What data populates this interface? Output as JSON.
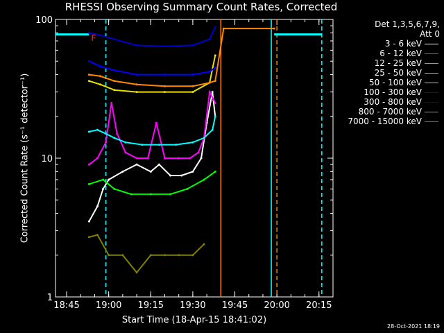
{
  "chart_data": {
    "type": "line",
    "title": "RHESSI Observing Summary Count Rates, Corrected",
    "xlabel": "Start Time (18-Apr-15 18:41:02)",
    "ylabel": "Corrected Count Rate (s⁻¹ detector⁻¹)",
    "x_ticks": [
      "18:45",
      "19:00",
      "19:15",
      "19:30",
      "19:45",
      "20:00",
      "20:15"
    ],
    "y_ticks": [
      "1",
      "10",
      "100"
    ],
    "y_scale": "log",
    "ylim": [
      1,
      100
    ],
    "xlim": [
      "18:41:02",
      "20:20"
    ],
    "grid": false,
    "legend_position": "top-right",
    "legend_header": [
      "Det 1,3,5,6,7,9,",
      "Att 0"
    ],
    "footer": "28-Oct-2021 18:19",
    "flag_label": "F",
    "colors": {
      "3 - 6 keV": "#000000",
      "6 - 12 keV": "#ff00ff",
      "12 - 25 keV": "#00ff00",
      "25 - 50 keV": "#00ffff",
      "50 - 100 keV": "#e8e000",
      "100 - 300 keV": "#0000ff",
      "300 - 800 keV": "#0000cc",
      "800 - 7000 keV": "#ff8800",
      "7000 - 15000 keV": "#808000"
    },
    "series": [
      {
        "name": "3 - 6 keV",
        "x": [
          "18:53",
          "18:56",
          "18:58",
          "19:00",
          "19:05",
          "19:10",
          "19:15",
          "19:18",
          "19:22",
          "19:26",
          "19:30",
          "19:33",
          "19:35",
          "19:37",
          "19:38"
        ],
        "values": [
          3.5,
          4.5,
          6,
          7,
          8,
          9,
          8,
          9,
          7.5,
          7.5,
          8,
          10,
          18,
          30,
          20
        ]
      },
      {
        "name": "6 - 12 keV",
        "x": [
          "18:53",
          "18:56",
          "18:59",
          "19:01",
          "19:03",
          "19:06",
          "19:10",
          "19:14",
          "19:17",
          "19:20",
          "19:25",
          "19:29",
          "19:32",
          "19:34",
          "19:36",
          "19:38"
        ],
        "values": [
          9,
          10,
          13,
          25,
          15,
          11,
          10,
          10,
          18,
          10,
          10,
          10,
          11,
          14,
          30,
          25
        ]
      },
      {
        "name": "12 - 25 keV",
        "x": [
          "18:53",
          "18:58",
          "19:02",
          "19:08",
          "19:15",
          "19:22",
          "19:28",
          "19:34",
          "19:38"
        ],
        "values": [
          6.5,
          7,
          6,
          5.5,
          5.5,
          5.5,
          6,
          7,
          8
        ]
      },
      {
        "name": "25 - 50 keV",
        "x": [
          "18:53",
          "18:56",
          "18:59",
          "19:02",
          "19:06",
          "19:12",
          "19:18",
          "19:24",
          "19:30",
          "19:34",
          "19:37",
          "19:38"
        ],
        "values": [
          15.5,
          16,
          15,
          14,
          13,
          12.5,
          12.5,
          12.5,
          13,
          14,
          16,
          20
        ]
      },
      {
        "name": "50 - 100 keV",
        "x": [
          "18:53",
          "18:57",
          "19:02",
          "19:10",
          "19:20",
          "19:30",
          "19:36",
          "19:38"
        ],
        "values": [
          36,
          34,
          31,
          30,
          30,
          30,
          35,
          55
        ]
      },
      {
        "name": "100 - 300 keV",
        "x": [
          "18:53",
          "18:57",
          "19:02",
          "19:10",
          "19:20",
          "19:30",
          "19:36",
          "19:38"
        ],
        "values": [
          50,
          46,
          43,
          40,
          40,
          40,
          42,
          45
        ]
      },
      {
        "name": "300 - 800 keV",
        "x": [
          "18:53",
          "18:57",
          "19:02",
          "19:10",
          "19:20",
          "19:30",
          "19:36",
          "19:38"
        ],
        "values": [
          80,
          77,
          72,
          65,
          64,
          65,
          72,
          88
        ]
      },
      {
        "name": "800 - 7000 keV",
        "x": [
          "18:53",
          "18:57",
          "19:02",
          "19:10",
          "19:20",
          "19:30",
          "19:36",
          "19:38",
          "19:41",
          "19:59"
        ],
        "values": [
          40,
          39,
          36,
          34,
          33,
          33,
          35,
          36,
          86,
          86
        ]
      },
      {
        "name": "7000 - 15000 keV",
        "x": [
          "18:53",
          "18:56",
          "19:00",
          "19:05",
          "19:10",
          "19:15",
          "19:20",
          "19:25",
          "19:30",
          "19:34"
        ],
        "values": [
          2.7,
          2.8,
          2,
          2,
          1.5,
          2,
          2,
          2,
          2,
          2.4
        ]
      }
    ],
    "vertical_lines": [
      {
        "x": "18:59",
        "color": "#00ffff",
        "style": "dashed"
      },
      {
        "x": "19:40",
        "color": "#ff8800",
        "style": "solid"
      },
      {
        "x": "19:58",
        "color": "#00ffff",
        "style": "solid"
      },
      {
        "x": "20:00",
        "color": "#ff8800",
        "style": "dashed"
      },
      {
        "x": "20:16",
        "color": "#00ffff",
        "style": "dashed"
      }
    ],
    "horizontal_segments": [
      {
        "x1": "18:41:02",
        "x2": "18:53",
        "y": 78,
        "color": "#00ffff"
      },
      {
        "x1": "19:59",
        "x2": "20:16",
        "y": 78,
        "color": "#00ffff"
      }
    ]
  }
}
